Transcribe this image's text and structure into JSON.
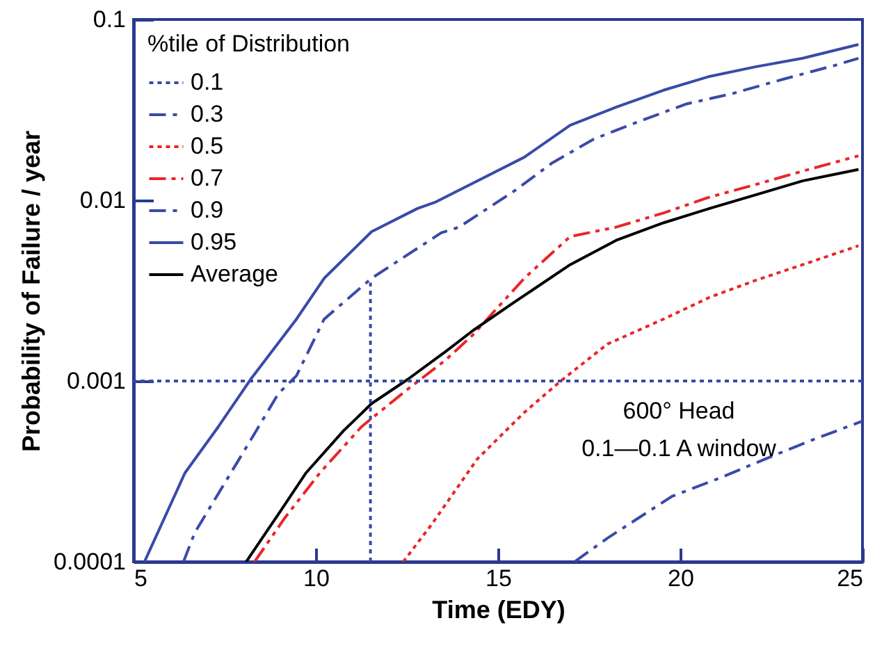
{
  "chart_data": {
    "type": "line",
    "xlabel": "Time (EDY)",
    "ylabel": "Probability of Failure / year",
    "legend_title": "%tile of Distribution",
    "legend": "top left",
    "log": "y",
    "grid": false,
    "xlim": [
      5,
      25
    ],
    "xticks": [
      5,
      10,
      15,
      20,
      25
    ],
    "ylim": [
      0.0001,
      0.1
    ],
    "yticks": [
      0.0001,
      0.001,
      0.01,
      0.1
    ],
    "series": [
      {
        "name": "0.1",
        "color": "#3a4aa8",
        "line_style": "dotted"
      },
      {
        "name": "0.3",
        "color": "#3a4aa8",
        "line_style": "dashdot",
        "x": [
          17.1,
          18.0,
          19.77,
          21.07,
          22.6,
          23.6,
          25.0
        ],
        "values": [
          0.0001,
          0.000135,
          0.00023,
          0.00029,
          0.00039,
          0.00047,
          0.0006
        ]
      },
      {
        "name": "0.5",
        "color": "#e8262a",
        "line_style": "dotted",
        "x": [
          12.4,
          13.17,
          14.43,
          15.72,
          16.72,
          18.0,
          19.54,
          20.8,
          22.06,
          23.36,
          24.89
        ],
        "values": [
          0.0001,
          0.00016,
          0.00037,
          0.00067,
          0.001,
          0.0016,
          0.0022,
          0.0029,
          0.0036,
          0.0044,
          0.0056
        ]
      },
      {
        "name": "0.7",
        "color": "#e8262a",
        "line_style": "dashdotdot",
        "x": [
          8.32,
          9.16,
          10.11,
          11.26,
          12.52,
          13.55,
          14.31,
          15.72,
          16.98,
          18.24,
          19.54,
          20.8,
          22.06,
          23.36,
          24.89
        ],
        "values": [
          0.0001,
          0.000176,
          0.00031,
          0.00056,
          0.0009,
          0.0013,
          0.0018,
          0.0037,
          0.0063,
          0.0071,
          0.0085,
          0.0104,
          0.0122,
          0.0145,
          0.0176
        ]
      },
      {
        "name": "0.9",
        "color": "#3a4aa8",
        "line_style": "dashdot",
        "x": [
          6.37,
          6.68,
          8.21,
          8.97,
          9.47,
          10.23,
          11.53,
          13.44,
          13.93,
          15.46,
          16.49,
          17.63,
          18.89,
          20.15,
          21.45,
          22.82,
          24.24,
          24.89
        ],
        "values": [
          0.0001,
          0.000145,
          0.00047,
          0.00085,
          0.00107,
          0.0022,
          0.0037,
          0.0066,
          0.0071,
          0.0113,
          0.0161,
          0.0218,
          0.0274,
          0.034,
          0.039,
          0.0467,
          0.0557,
          0.061
        ]
      },
      {
        "name": "0.95",
        "color": "#3a4aa8",
        "line_style": "solid",
        "x": [
          5.3,
          5.42,
          6.41,
          7.33,
          8.21,
          9.47,
          10.23,
          11.53,
          12.79,
          13.3,
          15.72,
          16.98,
          18.24,
          19.54,
          20.8,
          22.06,
          23.36,
          24.89
        ],
        "values": [
          0.0001,
          0.000113,
          0.00031,
          0.00056,
          0.00102,
          0.0022,
          0.0037,
          0.0067,
          0.009,
          0.0098,
          0.0173,
          0.026,
          0.0327,
          0.0406,
          0.0484,
          0.0547,
          0.061,
          0.0727
        ]
      },
      {
        "name": "Average",
        "color": "#000000",
        "line_style": "solid",
        "x": [
          8.09,
          8.97,
          9.73,
          10.76,
          11.53,
          12.52,
          13.55,
          14.31,
          15.46,
          16.98,
          18.24,
          19.54,
          20.8,
          22.06,
          23.36,
          24.89
        ],
        "values": [
          0.0001,
          0.000183,
          0.00031,
          0.00053,
          0.00075,
          0.00102,
          0.00145,
          0.0019,
          0.00274,
          0.0044,
          0.006,
          0.0075,
          0.009,
          0.0107,
          0.0128,
          0.0148
        ]
      },
      {
        "color": "#3a4aa8",
        "line_style": "dotted",
        "x": [
          11.5,
          11.5
        ],
        "values": [
          0.0001,
          0.0035
        ]
      }
    ],
    "ref_lines": [
      {
        "axis": "y",
        "value": 0.001,
        "color": "#3a4aa8",
        "line_style": "dotted"
      }
    ],
    "annotations": [
      "600° Head",
      "0.1—0.1 A window"
    ]
  }
}
